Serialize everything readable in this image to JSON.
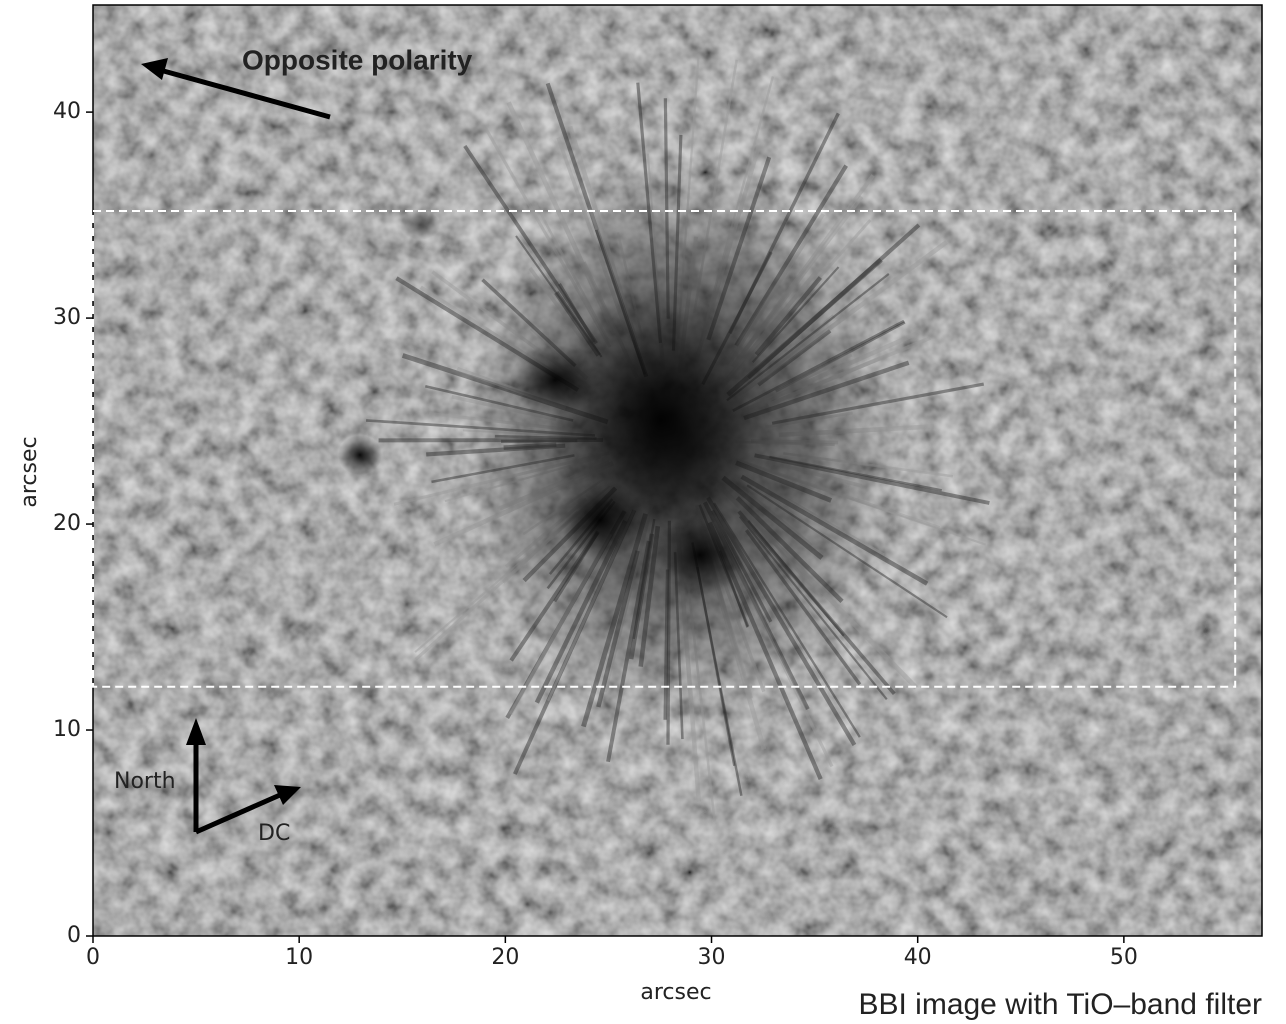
{
  "chart_data": {
    "type": "image",
    "x_label": "arcsec",
    "y_label": "arcsec",
    "caption": "BBI image with TiO–band filter",
    "xlim": [
      0,
      56.7
    ],
    "ylim": [
      0,
      45.2
    ],
    "xticks": [
      0,
      10,
      20,
      30,
      40,
      50
    ],
    "yticks": [
      0,
      10,
      20,
      30,
      40
    ],
    "region": {
      "x": [
        0,
        55.4
      ],
      "y": [
        12.1,
        35.2
      ]
    },
    "annotations": {
      "opposite": "Opposite polarity",
      "north": "North",
      "dc": "DC"
    }
  }
}
